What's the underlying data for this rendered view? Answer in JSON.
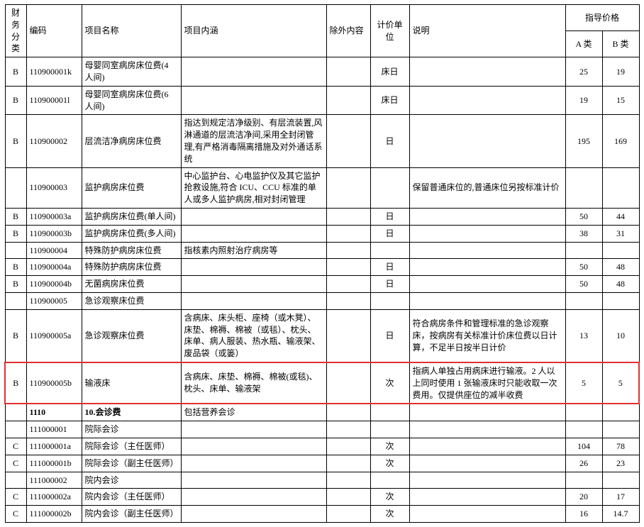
{
  "header": {
    "fin": "财务分类",
    "code": "编码",
    "name": "项目名称",
    "desc": "项目内涵",
    "excl": "除外内容",
    "unit": "计价单位",
    "note": "说明",
    "price_group": "指导价格",
    "pa": "A 类",
    "pb": "B 类"
  },
  "rows": [
    {
      "fin": "B",
      "code": "110900001k",
      "name": "母婴同室病房床位费(4 人间)",
      "desc": "",
      "excl": "",
      "unit": "床日",
      "note": "",
      "pa": "25",
      "pb": "19",
      "hl": false,
      "bold": false
    },
    {
      "fin": "B",
      "code": "110900001l",
      "name": "母婴同室病房床位费(6 人间)",
      "desc": "",
      "excl": "",
      "unit": "床日",
      "note": "",
      "pa": "19",
      "pb": "15",
      "hl": false,
      "bold": false
    },
    {
      "fin": "B",
      "code": "110900002",
      "name": "层流洁净病房床位费",
      "desc": "指达到规定洁净级别、有层流装置,风淋通道的层流洁净间,采用全封闭管理,有严格消毒隔离措施及对外通话系统",
      "excl": "",
      "unit": "日",
      "note": "",
      "pa": "195",
      "pb": "169",
      "hl": false,
      "bold": false
    },
    {
      "fin": "",
      "code": "110900003",
      "name": "监护病房床位费",
      "desc": "中心监护台、心电监护仪及其它监护抢救设施,符合 ICU、CCU 标准的单人或多人监护病房,相对封闭管理",
      "excl": "",
      "unit": "",
      "note": "保留普通床位的,普通床位另按标准计价",
      "pa": "",
      "pb": "",
      "hl": false,
      "bold": false
    },
    {
      "fin": "B",
      "code": "110900003a",
      "name": "监护病房床位费(单人间)",
      "desc": "",
      "excl": "",
      "unit": "日",
      "note": "",
      "pa": "50",
      "pb": "44",
      "hl": false,
      "bold": false
    },
    {
      "fin": "B",
      "code": "110900003b",
      "name": "监护病房床位费(多人间)",
      "desc": "",
      "excl": "",
      "unit": "日",
      "note": "",
      "pa": "38",
      "pb": "31",
      "hl": false,
      "bold": false
    },
    {
      "fin": "",
      "code": "110900004",
      "name": "特殊防护病房床位费",
      "desc": "指核素内照射治疗病房等",
      "excl": "",
      "unit": "",
      "note": "",
      "pa": "",
      "pb": "",
      "hl": false,
      "bold": false
    },
    {
      "fin": "B",
      "code": "110900004a",
      "name": "特殊防护病房床位费",
      "desc": "",
      "excl": "",
      "unit": "日",
      "note": "",
      "pa": "50",
      "pb": "48",
      "hl": false,
      "bold": false
    },
    {
      "fin": "B",
      "code": "110900004b",
      "name": "无菌病房床位费",
      "desc": "",
      "excl": "",
      "unit": "日",
      "note": "",
      "pa": "50",
      "pb": "48",
      "hl": false,
      "bold": false
    },
    {
      "fin": "",
      "code": "110900005",
      "name": "急诊观察床位费",
      "desc": "",
      "excl": "",
      "unit": "",
      "note": "",
      "pa": "",
      "pb": "",
      "hl": false,
      "bold": false
    },
    {
      "fin": "B",
      "code": "110900005a",
      "name": "急诊观察床位费",
      "desc": "含病床、床头柜、座椅（或木凳）、床垫、棉褥、棉被（或毯）、枕头、床单、病人服装、热水瓶、输液架、废品袋（或篓）",
      "excl": "",
      "unit": "日",
      "note": "符合病房条件和管理标准的急诊观察床，按病房有关标准计价床位费以日计算，不足半日按半日计价",
      "pa": "13",
      "pb": "10",
      "hl": false,
      "bold": false
    },
    {
      "fin": "B",
      "code": "110900005b",
      "name": "输液床",
      "desc": "含病床、床垫、棉褥、棉被(或毯)、枕头、床单、输液架",
      "excl": "",
      "unit": "次",
      "note": "指病人单独占用病床进行输液。2 人以上同时使用 1 张输液床时只能收取一次费用。仅提供座位的减半收费",
      "pa": "5",
      "pb": "5",
      "hl": true,
      "bold": false
    },
    {
      "fin": "",
      "code": "1110",
      "name": "10.会诊费",
      "desc": "包括营养会诊",
      "excl": "",
      "unit": "",
      "note": "",
      "pa": "",
      "pb": "",
      "hl": false,
      "bold": true
    },
    {
      "fin": "",
      "code": "111000001",
      "name": "院际会诊",
      "desc": "",
      "excl": "",
      "unit": "",
      "note": "",
      "pa": "",
      "pb": "",
      "hl": false,
      "bold": false
    },
    {
      "fin": "C",
      "code": "111000001a",
      "name": "院际会诊（主任医师）",
      "desc": "",
      "excl": "",
      "unit": "次",
      "note": "",
      "pa": "104",
      "pb": "78",
      "hl": false,
      "bold": false
    },
    {
      "fin": "C",
      "code": "111000001b",
      "name": "院际会诊（副主任医师）",
      "desc": "",
      "excl": "",
      "unit": "次",
      "note": "",
      "pa": "26",
      "pb": "23",
      "hl": false,
      "bold": false
    },
    {
      "fin": "",
      "code": "111000002",
      "name": "院内会诊",
      "desc": "",
      "excl": "",
      "unit": "",
      "note": "",
      "pa": "",
      "pb": "",
      "hl": false,
      "bold": false
    },
    {
      "fin": "C",
      "code": "111000002a",
      "name": "院内会诊（主任医师）",
      "desc": "",
      "excl": "",
      "unit": "次",
      "note": "",
      "pa": "20",
      "pb": "17",
      "hl": false,
      "bold": false
    },
    {
      "fin": "C",
      "code": "111000002b",
      "name": "院内会诊（副主任医师）",
      "desc": "",
      "excl": "",
      "unit": "次",
      "note": "",
      "pa": "16",
      "pb": "14.7",
      "hl": false,
      "bold": false
    }
  ]
}
